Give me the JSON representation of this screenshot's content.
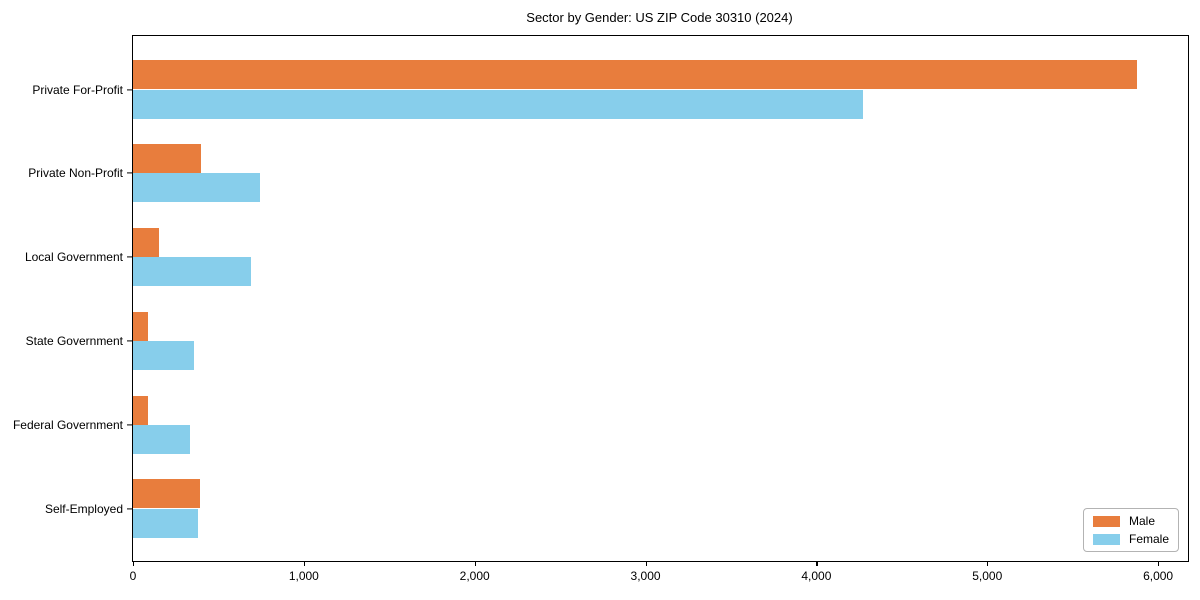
{
  "title": "Sector by Gender: US ZIP Code 30310 (2024)",
  "chart_data": {
    "type": "bar",
    "orientation": "horizontal",
    "title": "Sector by Gender: US ZIP Code 30310 (2024)",
    "categories": [
      "Private For-Profit",
      "Private Non-Profit",
      "Local Government",
      "State Government",
      "Federal Government",
      "Self-Employed"
    ],
    "series": [
      {
        "name": "Male",
        "color": "#e87d3d",
        "values": [
          5875,
          400,
          155,
          85,
          90,
          395
        ]
      },
      {
        "name": "Female",
        "color": "#87ceeb",
        "values": [
          4270,
          745,
          690,
          355,
          335,
          380
        ]
      }
    ],
    "xlabel": "",
    "ylabel": "",
    "xlim": [
      0,
      6175
    ],
    "xticks": [
      0,
      1000,
      2000,
      3000,
      4000,
      5000,
      6000
    ],
    "xtick_labels": [
      "0",
      "1,000",
      "2,000",
      "3,000",
      "4,000",
      "5,000",
      "6,000"
    ],
    "grid": false,
    "legend_position": "lower right"
  }
}
